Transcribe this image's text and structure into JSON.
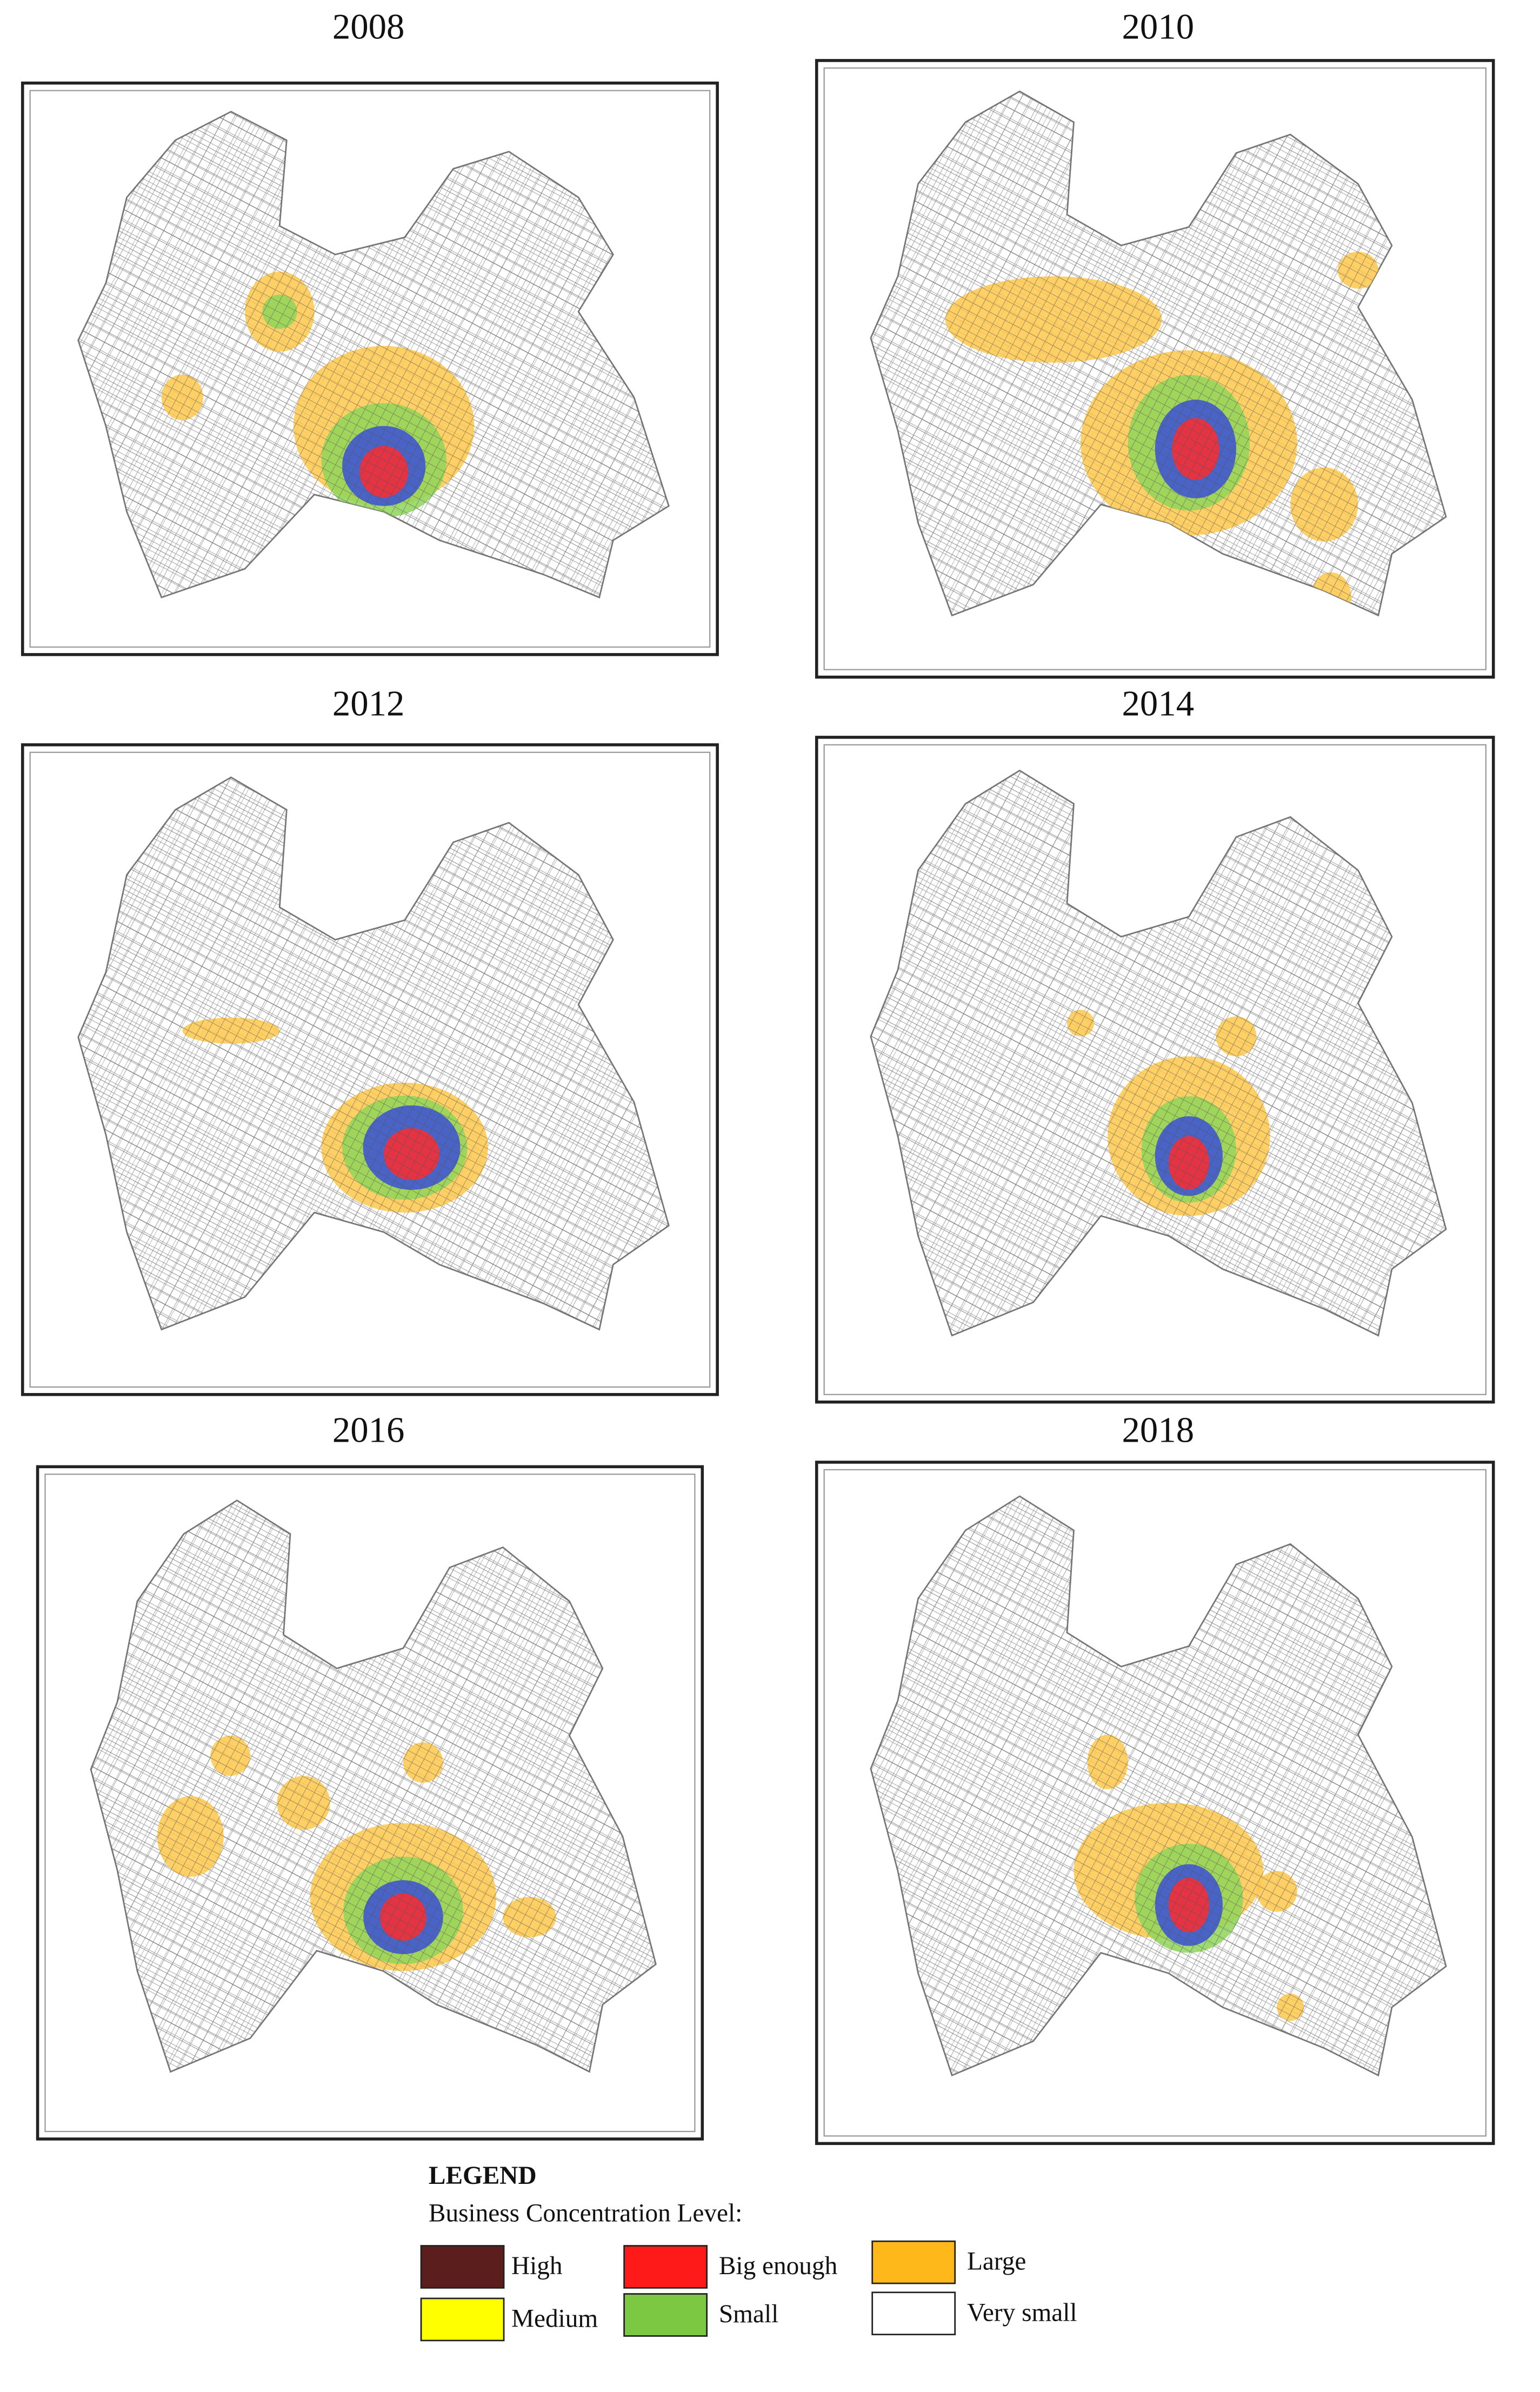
{
  "panels": [
    {
      "title": "2008"
    },
    {
      "title": "2010"
    },
    {
      "title": "2012"
    },
    {
      "title": "2014"
    },
    {
      "title": "2016"
    },
    {
      "title": "2018"
    }
  ],
  "legend": {
    "title": "LEGEND",
    "subtitle": "Business Concentration Level:",
    "items": [
      {
        "label": "High",
        "color": "#5c1d1d"
      },
      {
        "label": "Big enough",
        "color": "#ff1a1a"
      },
      {
        "label": "Large",
        "color": "#ffb81a"
      },
      {
        "label": "Medium",
        "color": "#ffff00"
      },
      {
        "label": "Small",
        "color": "#7cc843"
      },
      {
        "label": "Very small",
        "color": "#ffffff"
      }
    ]
  }
}
